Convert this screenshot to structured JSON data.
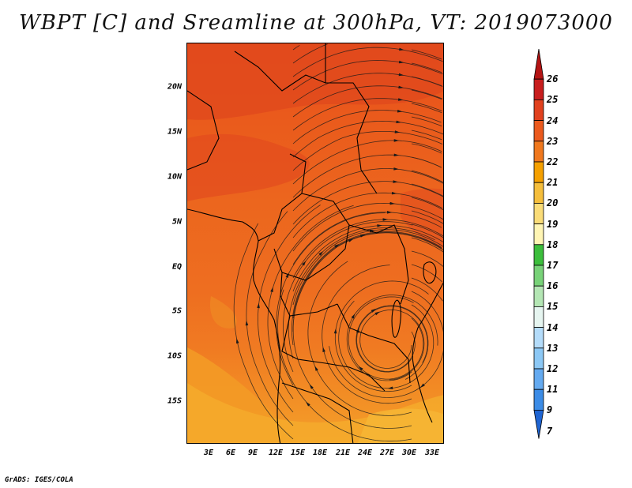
{
  "title": "WBPT [C] and Sreamline at 300hPa, VT: 2019073000",
  "credit": "GrADS: IGES/COLA",
  "map": {
    "lat_ticks": [
      "20N",
      "15N",
      "10N",
      "5N",
      "EQ",
      "5S",
      "10S",
      "15S"
    ],
    "lon_ticks": [
      "3E",
      "6E",
      "9E",
      "12E",
      "15E",
      "18E",
      "21E",
      "24E",
      "27E",
      "30E",
      "33E"
    ]
  },
  "colorbar": {
    "labels": [
      "26",
      "25",
      "24",
      "23",
      "22",
      "21",
      "20",
      "19",
      "18",
      "17",
      "16",
      "15",
      "14",
      "13",
      "12",
      "11",
      "9",
      "7"
    ],
    "colors": [
      "#b41414",
      "#c81e1e",
      "#e1411e",
      "#eb5a1e",
      "#f0781e",
      "#f5a000",
      "#f5be3c",
      "#fadc78",
      "#fff5b4",
      "#3cbe3c",
      "#78d278",
      "#b4e6b4",
      "#e6f5f0",
      "#b4dcfa",
      "#8cc8f5",
      "#64aaf0",
      "#3c8ce6",
      "#1e64d2"
    ]
  }
}
